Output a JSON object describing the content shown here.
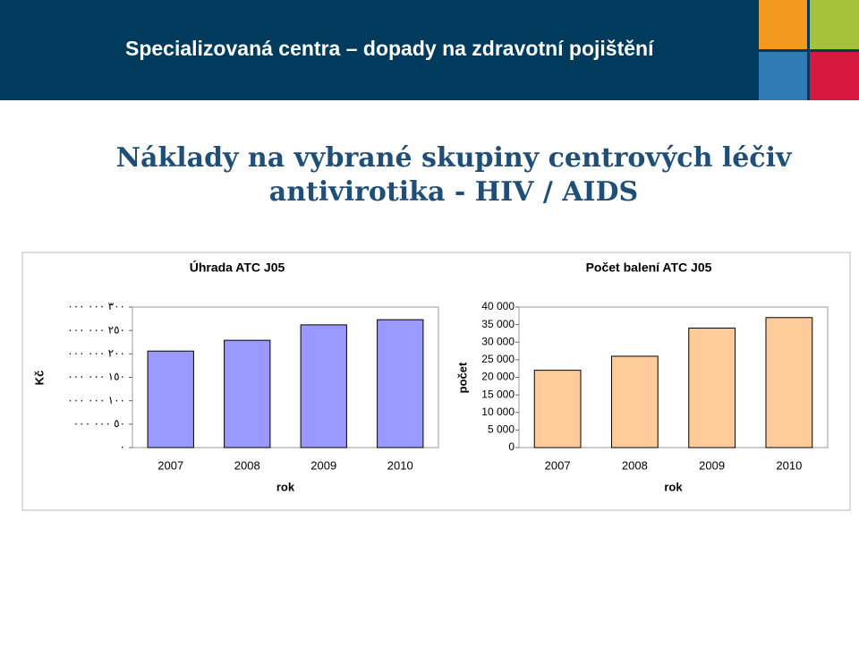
{
  "header": {
    "title": "Specializovaná centra – dopady na zdravotní pojištění"
  },
  "heading": {
    "line1": "Náklady na vybrané skupiny centrových léčiv",
    "line2": "antivirotika - HIV / AIDS"
  },
  "chart_data": [
    {
      "type": "bar",
      "title": "Úhrada ATC J05",
      "x_label": "rok",
      "y_label": "Kč",
      "categories": [
        "2007",
        "2008",
        "2009",
        "2010"
      ],
      "values": [
        206000000,
        229000000,
        262000000,
        273000000
      ],
      "color": "#9999ff",
      "ylim": [
        0,
        300000000
      ],
      "yticks": [
        {
          "value": 0,
          "label": "٠"
        },
        {
          "value": 50000000,
          "label": "٥٠ ٠٠٠ ٠٠٠"
        },
        {
          "value": 100000000,
          "label": "١٠٠ ٠٠٠ ٠٠٠"
        },
        {
          "value": 150000000,
          "label": "١٥٠ ٠٠٠ ٠٠٠"
        },
        {
          "value": 200000000,
          "label": "٢٠٠ ٠٠٠ ٠٠٠"
        },
        {
          "value": 250000000,
          "label": "٢٥٠ ٠٠٠ ٠٠٠"
        },
        {
          "value": 300000000,
          "label": "٣٠٠ ٠٠٠ ٠٠٠"
        }
      ]
    },
    {
      "type": "bar",
      "title": "Počet balení ATC J05",
      "x_label": "rok",
      "y_label": "počet",
      "categories": [
        "2007",
        "2008",
        "2009",
        "2010"
      ],
      "values": [
        22000,
        26000,
        34000,
        37000
      ],
      "color": "#ffcc99",
      "ylim": [
        0,
        40000
      ],
      "yticks": [
        0,
        {
          "value": 5000,
          "label": "5 000"
        },
        {
          "value": 10000,
          "label": "10 000"
        },
        {
          "value": 15000,
          "label": "15 000"
        },
        {
          "value": 20000,
          "label": "20 000"
        },
        {
          "value": 25000,
          "label": "25 000"
        },
        {
          "value": 30000,
          "label": "30 000"
        },
        {
          "value": 35000,
          "label": "35 000"
        },
        {
          "value": 40000,
          "label": "40 000"
        }
      ]
    }
  ]
}
